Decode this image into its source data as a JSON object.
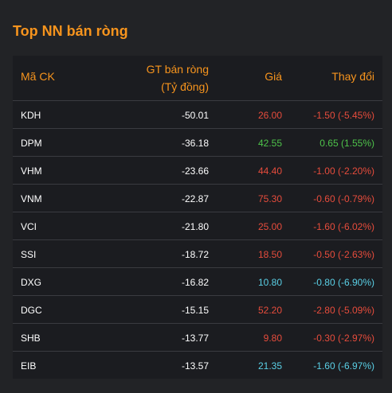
{
  "title": "Top NN bán ròng",
  "headers": {
    "code": "Mã CK",
    "value_line1": "GT bán ròng",
    "value_line2": "(Tỷ đồng)",
    "price": "Giá",
    "change": "Thay đổi"
  },
  "rows": [
    {
      "code": "KDH",
      "value": "-50.01",
      "price": "26.00",
      "change": "-1.50 (-5.45%)",
      "status": "down"
    },
    {
      "code": "DPM",
      "value": "-36.18",
      "price": "42.55",
      "change": "0.65 (1.55%)",
      "status": "up"
    },
    {
      "code": "VHM",
      "value": "-23.66",
      "price": "44.40",
      "change": "-1.00 (-2.20%)",
      "status": "down"
    },
    {
      "code": "VNM",
      "value": "-22.87",
      "price": "75.30",
      "change": "-0.60 (-0.79%)",
      "status": "down"
    },
    {
      "code": "VCI",
      "value": "-21.80",
      "price": "25.00",
      "change": "-1.60 (-6.02%)",
      "status": "down"
    },
    {
      "code": "SSI",
      "value": "-18.72",
      "price": "18.50",
      "change": "-0.50 (-2.63%)",
      "status": "down"
    },
    {
      "code": "DXG",
      "value": "-16.82",
      "price": "10.80",
      "change": "-0.80 (-6.90%)",
      "status": "floor"
    },
    {
      "code": "DGC",
      "value": "-15.15",
      "price": "52.20",
      "change": "-2.80 (-5.09%)",
      "status": "down"
    },
    {
      "code": "SHB",
      "value": "-13.77",
      "price": "9.80",
      "change": "-0.30 (-2.97%)",
      "status": "down"
    },
    {
      "code": "EIB",
      "value": "-13.57",
      "price": "21.35",
      "change": "-1.60 (-6.97%)",
      "status": "floor"
    }
  ],
  "colors": {
    "accent": "#f7941d",
    "down": "#e74c3c",
    "up": "#4ec34a",
    "floor": "#5ad0e6"
  }
}
